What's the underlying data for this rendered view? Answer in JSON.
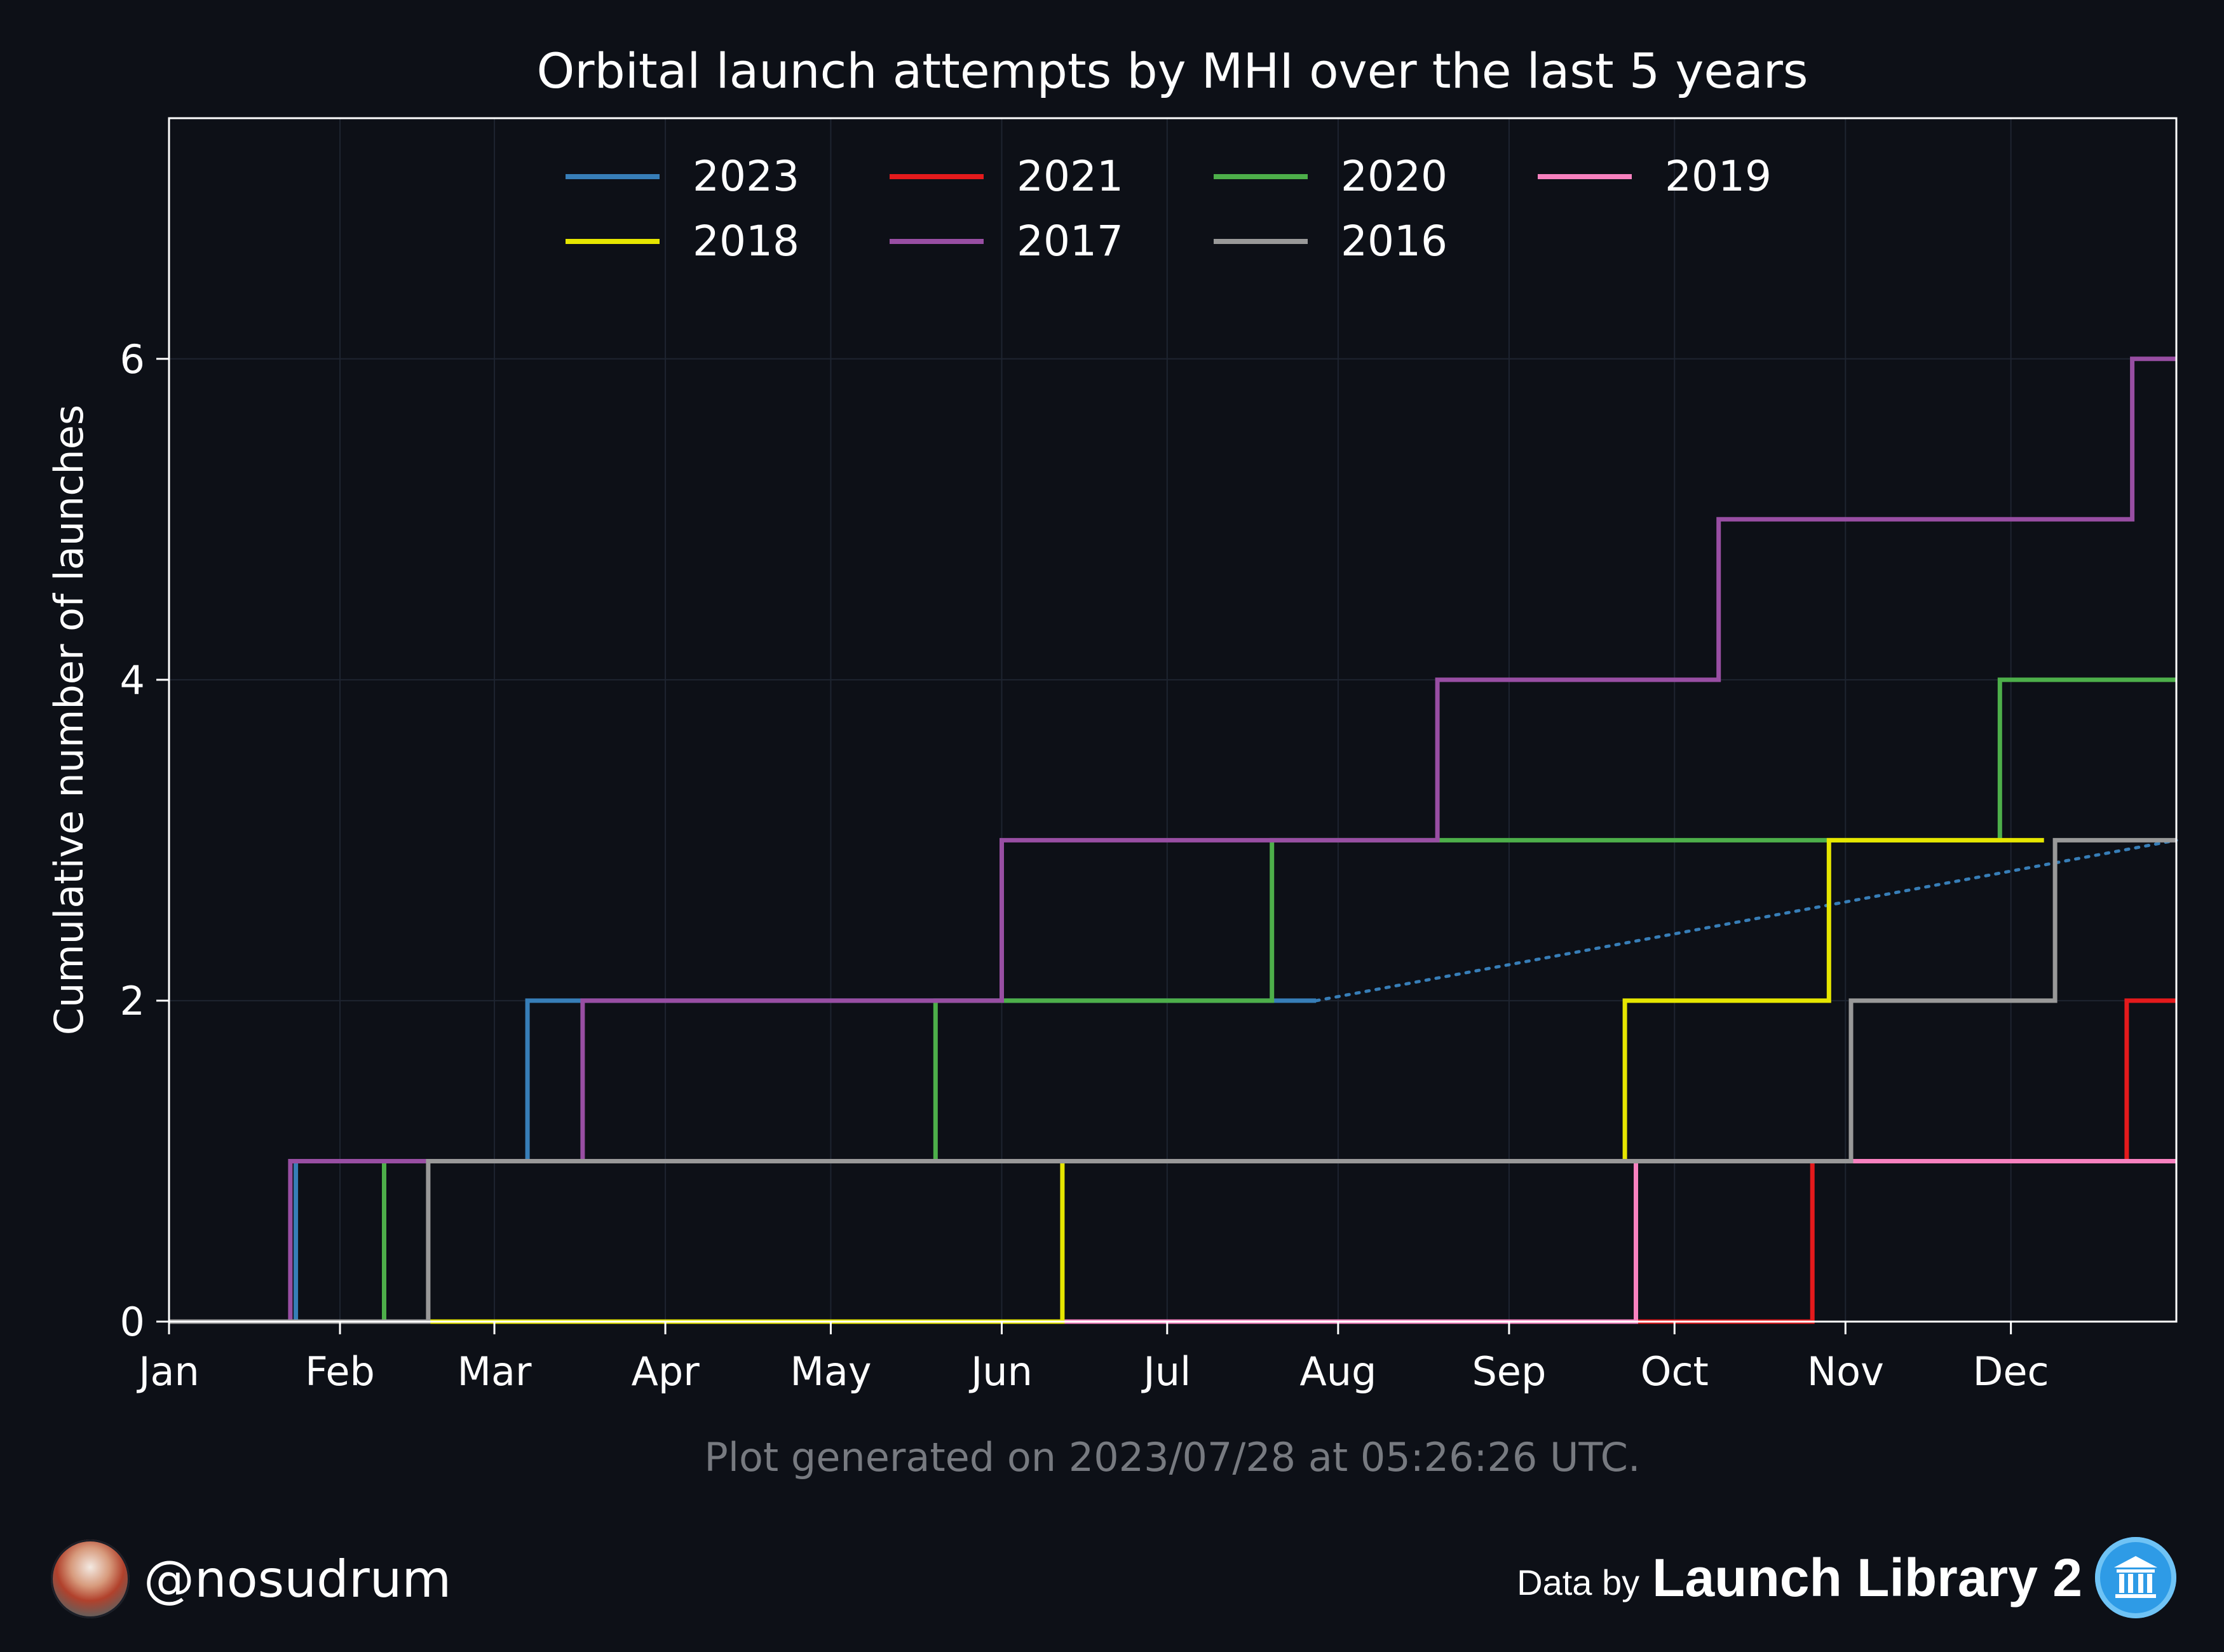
{
  "chart_data": {
    "type": "line",
    "step": true,
    "title": "Orbital launch attempts by MHI over the last 5 years",
    "ylabel": "Cumulative number of launches",
    "xlabel": "",
    "x_ticks": [
      "Jan",
      "Feb",
      "Mar",
      "Apr",
      "May",
      "Jun",
      "Jul",
      "Aug",
      "Sep",
      "Oct",
      "Nov",
      "Dec"
    ],
    "y_ticks": [
      "0",
      "2",
      "4",
      "6"
    ],
    "xlim": [
      "2023-01-01",
      "2023-12-31"
    ],
    "ylim": [
      0,
      7.5
    ],
    "grid": true,
    "legend": {
      "placement": "top-center",
      "columns": 4
    },
    "series": [
      {
        "name": "2023",
        "color": "#377eb8",
        "points": [
          [
            "2023-01-01",
            0
          ],
          [
            "2023-01-24",
            1
          ],
          [
            "2023-03-07",
            2
          ],
          [
            "2023-07-28",
            2
          ]
        ],
        "projection": [
          [
            "2023-07-28",
            2
          ],
          [
            "2023-12-31",
            3
          ]
        ]
      },
      {
        "name": "2021",
        "color": "#e41a1c",
        "points": [
          [
            "2023-01-01",
            0
          ],
          [
            "2023-10-26",
            1
          ],
          [
            "2023-12-22",
            2
          ],
          [
            "2023-12-31",
            2
          ]
        ]
      },
      {
        "name": "2020",
        "color": "#4daf4a",
        "points": [
          [
            "2023-01-01",
            0
          ],
          [
            "2023-02-09",
            1
          ],
          [
            "2023-05-20",
            2
          ],
          [
            "2023-07-20",
            3
          ],
          [
            "2023-11-29",
            4
          ],
          [
            "2023-12-31",
            4
          ]
        ]
      },
      {
        "name": "2019",
        "color": "#f781bf",
        "points": [
          [
            "2023-01-01",
            0
          ],
          [
            "2023-09-24",
            1
          ],
          [
            "2023-12-31",
            1
          ]
        ]
      },
      {
        "name": "2018",
        "color": "#e6e600",
        "points": [
          [
            "2023-01-01",
            0
          ],
          [
            "2023-06-12",
            1
          ],
          [
            "2023-09-22",
            2
          ],
          [
            "2023-10-29",
            3
          ],
          [
            "2023-12-07",
            3
          ]
        ]
      },
      {
        "name": "2017",
        "color": "#984ea3",
        "points": [
          [
            "2023-01-01",
            0
          ],
          [
            "2023-01-23",
            1
          ],
          [
            "2023-03-17",
            2
          ],
          [
            "2023-06-01",
            3
          ],
          [
            "2023-08-19",
            4
          ],
          [
            "2023-10-09",
            5
          ],
          [
            "2023-12-23",
            6
          ],
          [
            "2023-12-31",
            6
          ]
        ]
      },
      {
        "name": "2016",
        "color": "#999999",
        "points": [
          [
            "2023-01-01",
            0
          ],
          [
            "2023-02-17",
            1
          ],
          [
            "2023-11-02",
            2
          ],
          [
            "2023-12-09",
            3
          ],
          [
            "2023-12-31",
            3
          ]
        ]
      }
    ],
    "note": "Plot generated on 2023/07/28 at 05:26:26 UTC."
  },
  "footer": {
    "handle": "@nosudrum",
    "data_by": "Data by",
    "source": "Launch Library 2",
    "avatar_icon": "astronaut-avatar-icon",
    "source_icon": "library-building-icon"
  },
  "colors": {
    "background": "#0d1017",
    "note": "#777a80"
  }
}
